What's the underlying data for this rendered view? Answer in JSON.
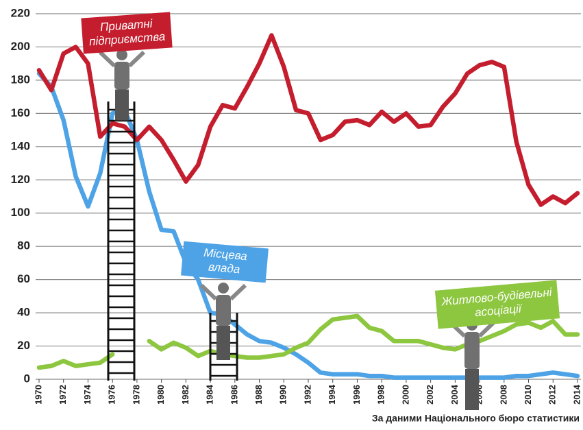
{
  "chart_data": {
    "type": "line",
    "x": [
      1970,
      1971,
      1972,
      1973,
      1974,
      1975,
      1976,
      1977,
      1978,
      1979,
      1980,
      1981,
      1982,
      1983,
      1984,
      1985,
      1986,
      1987,
      1988,
      1989,
      1990,
      1991,
      1992,
      1993,
      1994,
      1995,
      1996,
      1997,
      1998,
      1999,
      2000,
      2001,
      2002,
      2003,
      2004,
      2005,
      2006,
      2007,
      2008,
      2009,
      2010,
      2011,
      2012,
      2013,
      2014
    ],
    "series": [
      {
        "color": "#4da3e6",
        "values": [
          184,
          176,
          156,
          122,
          104,
          124,
          160,
          162,
          144,
          113,
          90,
          89,
          70,
          60,
          40,
          39,
          33,
          27,
          23,
          22,
          19,
          15,
          10,
          4,
          3,
          3,
          3,
          2,
          2,
          1,
          1,
          1,
          1,
          1,
          1,
          1,
          1,
          1,
          1,
          2,
          2,
          3,
          4,
          3,
          2
        ]
      },
      {
        "color": "#8dc63f",
        "values": [
          7,
          8,
          11,
          8,
          9,
          10,
          15,
          null,
          null,
          23,
          18,
          22,
          19,
          14,
          17,
          15,
          14,
          13,
          13,
          14,
          15,
          19,
          22,
          30,
          36,
          37,
          38,
          31,
          29,
          23,
          23,
          23,
          21,
          19,
          18,
          21,
          23,
          26,
          29,
          33,
          34,
          31,
          35,
          27,
          27
        ]
      },
      {
        "color": "#c41e2e",
        "values": [
          186,
          174,
          196,
          200,
          190,
          146,
          154,
          152,
          144,
          152,
          144,
          132,
          119,
          129,
          152,
          165,
          163,
          176,
          190,
          207,
          188,
          162,
          160,
          144,
          147,
          155,
          156,
          153,
          161,
          155,
          160,
          152,
          153,
          164,
          172,
          184,
          189,
          191,
          188,
          143,
          117,
          105,
          110,
          106,
          112
        ]
      }
    ],
    "annotations": [
      {
        "lines": [
          "Приватні",
          "підприємства"
        ],
        "color": "#c41e2e"
      },
      {
        "lines": [
          "Місцева",
          "влада"
        ],
        "color": "#4da3e6"
      },
      {
        "lines": [
          "Житлово-будівельні",
          "асоціації"
        ],
        "color": "#8dc63f"
      }
    ],
    "source": "За даними Національного бюро статистики",
    "xlim": [
      1970,
      2014
    ],
    "xticks": [
      1970,
      1972,
      1974,
      1976,
      1978,
      1980,
      1982,
      1984,
      1986,
      1988,
      1990,
      1992,
      1994,
      1996,
      1998,
      2000,
      2002,
      2004,
      2006,
      2008,
      2010,
      2012,
      2014
    ],
    "ylim": [
      0,
      220
    ],
    "yticks": [
      0,
      20,
      40,
      60,
      80,
      100,
      120,
      140,
      160,
      180,
      200,
      220
    ],
    "grid": true
  }
}
